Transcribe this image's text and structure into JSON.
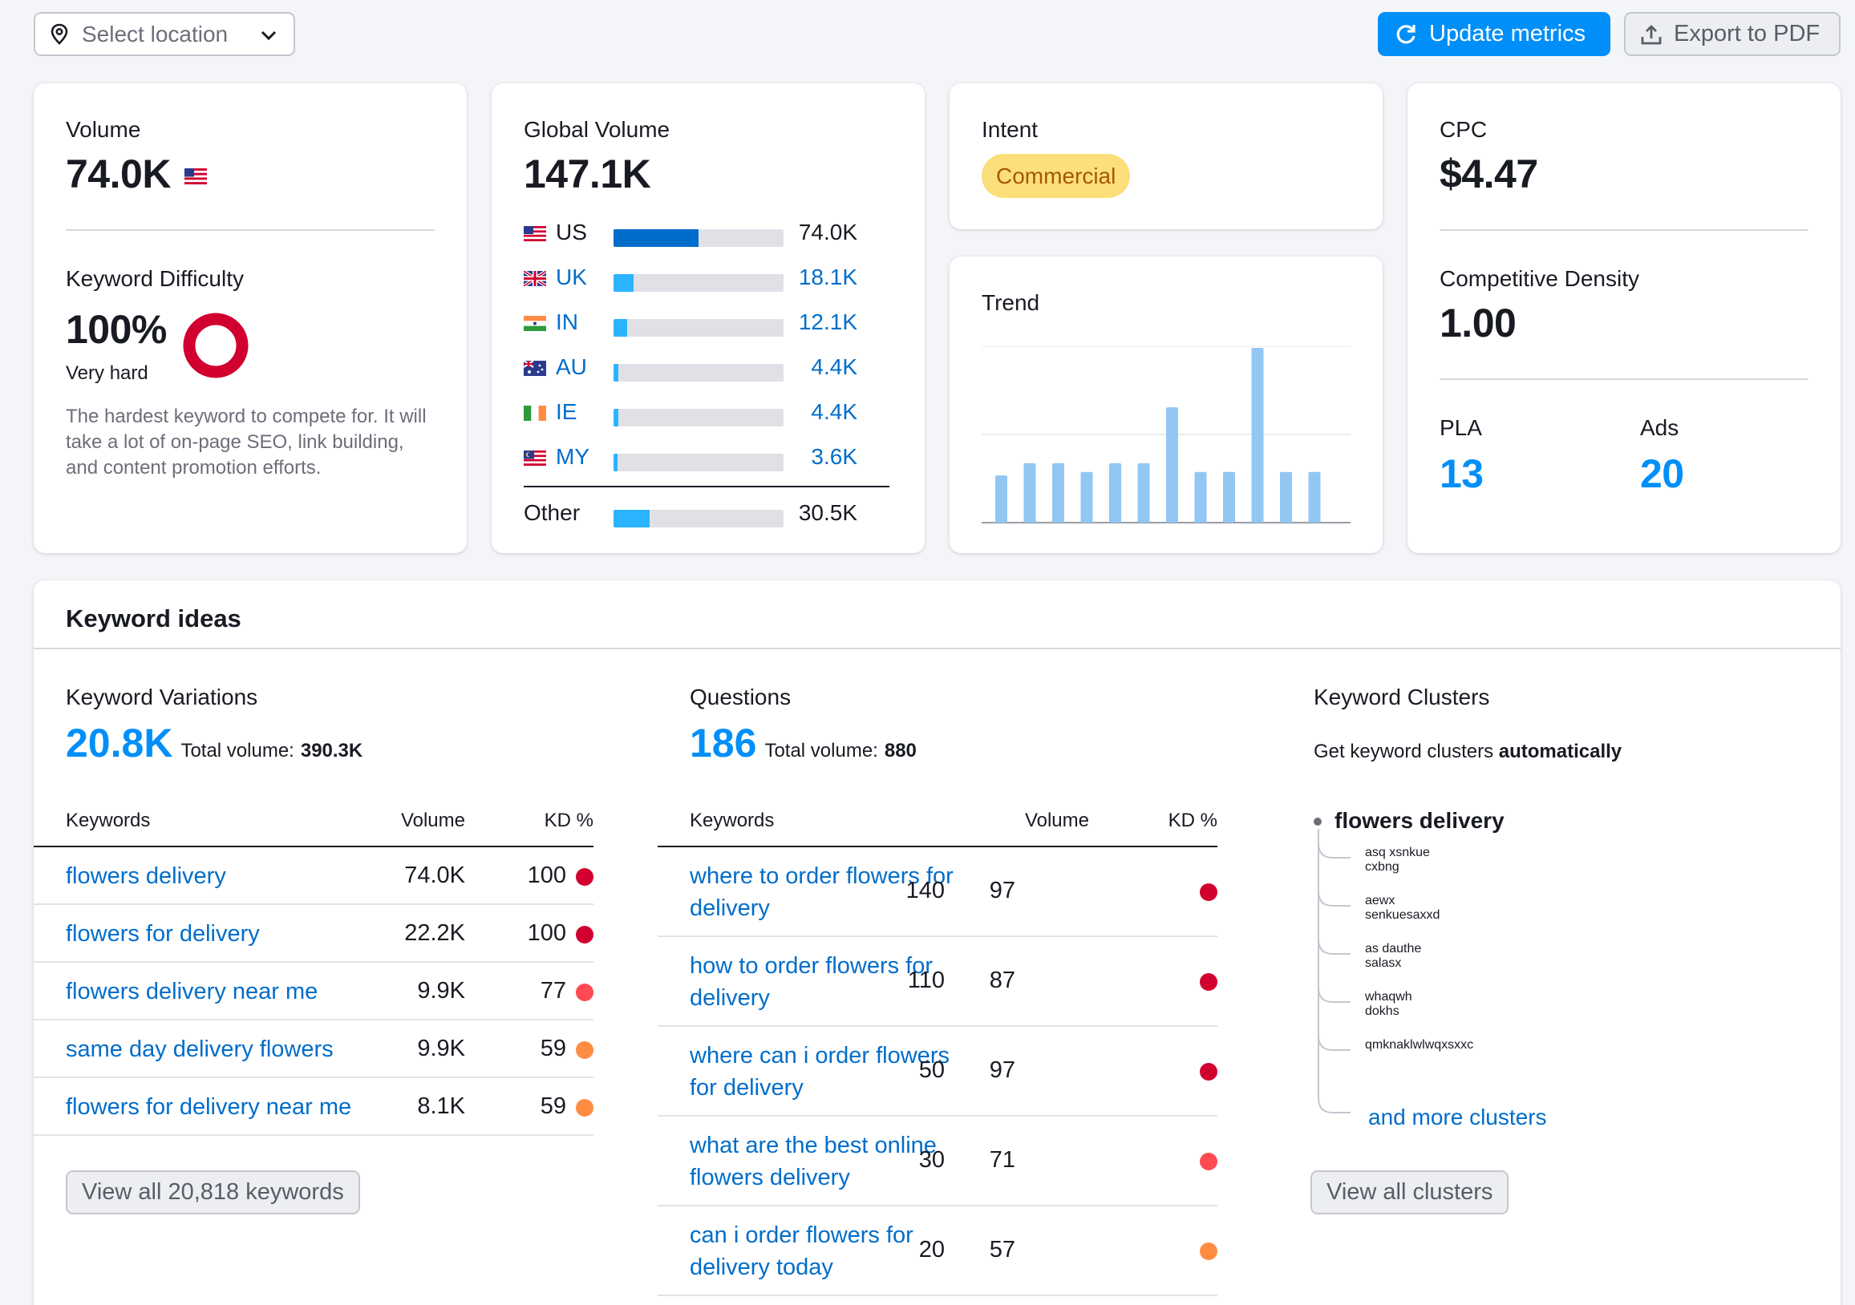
{
  "toolbar": {
    "location_placeholder": "Select location",
    "update_label": "Update metrics",
    "export_label": "Export to PDF"
  },
  "volume": {
    "label": "Volume",
    "value": "74.0K",
    "flag": "US"
  },
  "keyword_difficulty": {
    "label": "Keyword Difficulty",
    "value": "100%",
    "rating": "Very hard",
    "percent": 100,
    "description": "The hardest keyword to compete for. It will take a lot of on-page SEO, link building, and content promotion efforts.",
    "color": "#d1002f"
  },
  "global_volume": {
    "label": "Global Volume",
    "value": "147.1K",
    "countries": [
      {
        "code": "US",
        "value": "74.0K",
        "share": 0.5
      },
      {
        "code": "UK",
        "value": "18.1K",
        "share": 0.12
      },
      {
        "code": "IN",
        "value": "12.1K",
        "share": 0.08
      },
      {
        "code": "AU",
        "value": "4.4K",
        "share": 0.03
      },
      {
        "code": "IE",
        "value": "4.4K",
        "share": 0.03
      },
      {
        "code": "MY",
        "value": "3.6K",
        "share": 0.025
      }
    ],
    "other": {
      "label": "Other",
      "value": "30.5K",
      "share": 0.21
    }
  },
  "intent": {
    "label": "Intent",
    "value": "Commercial",
    "badge_color": "#fcdf7a",
    "text_color": "#a65800"
  },
  "trend": {
    "label": "Trend",
    "chart_data": {
      "type": "bar",
      "values": [
        0.27,
        0.34,
        0.34,
        0.29,
        0.34,
        0.34,
        0.66,
        0.29,
        0.29,
        1.0,
        0.29,
        0.29
      ],
      "color": "#92c6f3"
    }
  },
  "cpc": {
    "label": "CPC",
    "value": "$4.47",
    "density_label": "Competitive Density",
    "density_value": "1.00",
    "pla_label": "PLA",
    "pla_value": "13",
    "ads_label": "Ads",
    "ads_value": "20"
  },
  "ideas": {
    "title": "Keyword ideas",
    "variations": {
      "title": "Keyword Variations",
      "count": "20.8K",
      "total_label": "Total volume:",
      "total_value": "390.3K",
      "headers": {
        "keywords": "Keywords",
        "volume": "Volume",
        "kd": "KD %"
      },
      "rows": [
        {
          "keyword": "flowers delivery",
          "volume": "74.0K",
          "kd": "100",
          "color": "#d1002f"
        },
        {
          "keyword": "flowers for delivery",
          "volume": "22.2K",
          "kd": "100",
          "color": "#d1002f"
        },
        {
          "keyword": "flowers delivery near me",
          "volume": "9.9K",
          "kd": "77",
          "color": "#ff4953"
        },
        {
          "keyword": "same day delivery flowers",
          "volume": "9.9K",
          "kd": "59",
          "color": "#ff8c43"
        },
        {
          "keyword": "flowers for delivery near me",
          "volume": "8.1K",
          "kd": "59",
          "color": "#ff8c43"
        }
      ],
      "button": "View all 20,818 keywords"
    },
    "questions": {
      "title": "Questions",
      "count": "186",
      "total_label": "Total volume:",
      "total_value": "880",
      "headers": {
        "keywords": "Keywords",
        "volume": "Volume",
        "kd": "KD %"
      },
      "rows": [
        {
          "line1": "where to order flowers for",
          "line2": "delivery",
          "volume": "140",
          "kd": "97",
          "color": "#d1002f"
        },
        {
          "line1": "how to order flowers for",
          "line2": "delivery",
          "volume": "110",
          "kd": "87",
          "color": "#d1002f"
        },
        {
          "line1": "where can i order flowers",
          "line2": "for delivery",
          "volume": "50",
          "kd": "97",
          "color": "#d1002f"
        },
        {
          "line1": "what are the best online",
          "line2": "flowers delivery",
          "volume": "30",
          "kd": "71",
          "color": "#ff4953"
        },
        {
          "line1": "can i order flowers for",
          "line2": "delivery today",
          "volume": "20",
          "kd": "57",
          "color": "#ff8c43"
        }
      ]
    },
    "clusters": {
      "title": "Keyword Clusters",
      "subtitle_prefix": "Get keyword clusters",
      "subtitle_bold": "automatically",
      "root": "flowers delivery",
      "items": [
        "asq xsnkue cxbng",
        "aewx senkuesaxxd",
        "as dauthe salasx",
        "whaqwh dokhs",
        "qmknaklwlwqxsxxc"
      ],
      "more": "and more clusters",
      "button": "View all clusters"
    }
  }
}
